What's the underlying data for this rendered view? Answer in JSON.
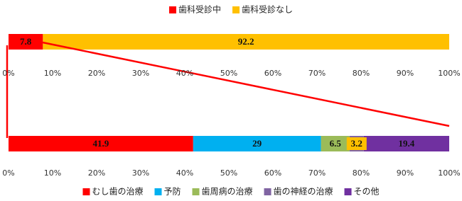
{
  "chart_data": [
    {
      "type": "bar",
      "orientation": "horizontal",
      "stacked": true,
      "legend": "top",
      "series": [
        {
          "name": "歯科受診中",
          "color": "#ff0000",
          "values": [
            7.8
          ]
        },
        {
          "name": "歯科受診なし",
          "color": "#ffc000",
          "values": [
            92.2
          ]
        }
      ],
      "xlim": [
        0,
        100
      ],
      "xticks": [
        {
          "value": 0,
          "label": "0%"
        },
        {
          "value": 10,
          "label": "10%"
        },
        {
          "value": 20,
          "label": "20%"
        },
        {
          "value": 30,
          "label": "30%"
        },
        {
          "value": 40,
          "label": "40%"
        },
        {
          "value": 50,
          "label": "50%"
        },
        {
          "value": 60,
          "label": "60%"
        },
        {
          "value": 70,
          "label": "70%"
        },
        {
          "value": 80,
          "label": "80%"
        },
        {
          "value": 90,
          "label": "90%"
        },
        {
          "value": 100,
          "label": "100%"
        }
      ]
    },
    {
      "type": "bar",
      "orientation": "horizontal",
      "stacked": true,
      "legend": "bottom",
      "series": [
        {
          "name": "むし歯の治療",
          "color": "#ff0000",
          "values": [
            41.9
          ]
        },
        {
          "name": "予防",
          "color": "#00b0f0",
          "values": [
            29
          ]
        },
        {
          "name": "歯周病の治療",
          "color": "#9bbb59",
          "values": [
            6.5
          ]
        },
        {
          "name": "歯の神経の治療",
          "color": "#8064a2",
          "label_background": "#ffc000",
          "values": [
            3.2
          ]
        },
        {
          "name": "その他",
          "color": "#7030a0",
          "values": [
            19.4
          ]
        }
      ],
      "xlim": [
        0,
        100
      ],
      "xticks": [
        {
          "value": 0,
          "label": "0%"
        },
        {
          "value": 10,
          "label": "10%"
        },
        {
          "value": 20,
          "label": "20%"
        },
        {
          "value": 30,
          "label": "30%"
        },
        {
          "value": 40,
          "label": "40%"
        },
        {
          "value": 50,
          "label": "50%"
        },
        {
          "value": 60,
          "label": "60%"
        },
        {
          "value": 70,
          "label": "70%"
        },
        {
          "value": 80,
          "label": "80%"
        },
        {
          "value": 90,
          "label": "90%"
        },
        {
          "value": 100,
          "label": "100%"
        }
      ]
    }
  ]
}
